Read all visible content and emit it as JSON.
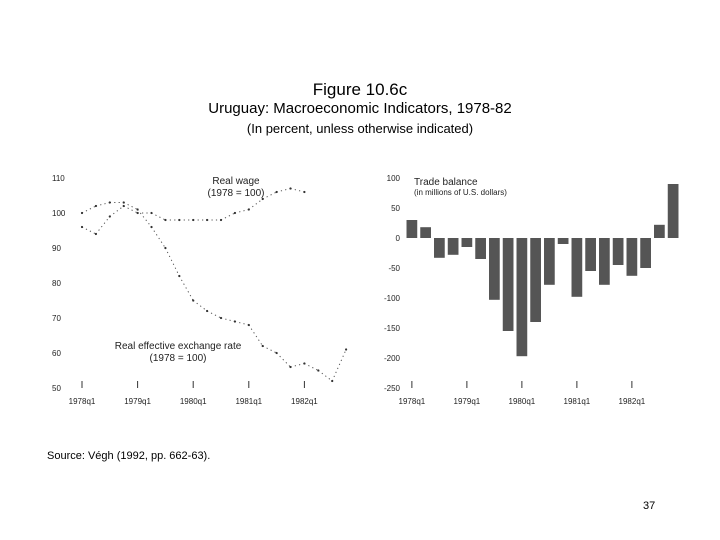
{
  "figure": {
    "title": "Figure 10.6c",
    "subtitle": "Uruguay: Macroeconomic Indicators, 1978-82",
    "units_note": "(In percent, unless otherwise indicated)"
  },
  "source_note": "Source: Végh (1992, pp. 662-63).",
  "page_number": "37",
  "chart_data": [
    {
      "type": "line",
      "ylim": [
        50,
        110
      ],
      "yticks": [
        "110",
        "100",
        "90",
        "80",
        "70",
        "60",
        "50"
      ],
      "categories": [
        "1978q1",
        "1979q1",
        "1980q1",
        "1981q1",
        "1982q1"
      ],
      "annotations": [
        {
          "name": "real_wage",
          "lines": [
            "Real wage",
            "(1978 = 100)"
          ]
        },
        {
          "name": "reer",
          "lines": [
            "Real effective exchange rate",
            "(1978 = 100)"
          ]
        }
      ],
      "series": [
        {
          "name": "Real wage",
          "x": [
            1978.0,
            1978.25,
            1978.5,
            1978.75,
            1979.0,
            1979.25,
            1979.5,
            1979.75,
            1980.0,
            1980.25,
            1980.5,
            1980.75,
            1981.0,
            1981.25,
            1981.5,
            1981.75,
            1982.0
          ],
          "values": [
            96,
            94,
            99,
            102,
            100,
            100,
            98,
            98,
            98,
            98,
            98,
            100,
            101,
            104,
            106,
            107,
            106
          ]
        },
        {
          "name": "Real effective exchange rate",
          "x": [
            1978.0,
            1978.25,
            1978.5,
            1978.75,
            1979.0,
            1979.25,
            1979.5,
            1979.75,
            1980.0,
            1980.25,
            1980.5,
            1980.75,
            1981.0,
            1981.25,
            1981.5,
            1981.75,
            1982.0,
            1982.25,
            1982.5,
            1982.75
          ],
          "values": [
            100,
            102,
            103,
            103,
            101,
            96,
            90,
            82,
            75,
            72,
            70,
            69,
            68,
            62,
            60,
            56,
            57,
            55,
            52,
            61
          ]
        }
      ]
    },
    {
      "type": "bar",
      "ylim": [
        -250,
        100
      ],
      "yticks": [
        "100",
        "50",
        "0",
        "-50",
        "-100",
        "-150",
        "-200",
        "-250"
      ],
      "categories": [
        "1978q1",
        "1979q1",
        "1980q1",
        "1981q1",
        "1982q1"
      ],
      "annotations": [
        {
          "name": "trade_balance",
          "lines": [
            "Trade balance",
            "(in millions of U.S. dollars)"
          ]
        }
      ],
      "series": [
        {
          "name": "Trade balance",
          "x": [
            "1978q1",
            "1978q2",
            "1978q3",
            "1978q4",
            "1979q1",
            "1979q2",
            "1979q3",
            "1979q4",
            "1980q1",
            "1980q2",
            "1980q3",
            "1980q4",
            "1981q1",
            "1981q2",
            "1981q3",
            "1981q4",
            "1982q1",
            "1982q2",
            "1982q3",
            "1982q4"
          ],
          "values": [
            30,
            18,
            -33,
            -28,
            -15,
            -35,
            -103,
            -155,
            -197,
            -140,
            -78,
            -10,
            -98,
            -55,
            -78,
            -45,
            -63,
            -50,
            22,
            90
          ]
        }
      ]
    }
  ]
}
